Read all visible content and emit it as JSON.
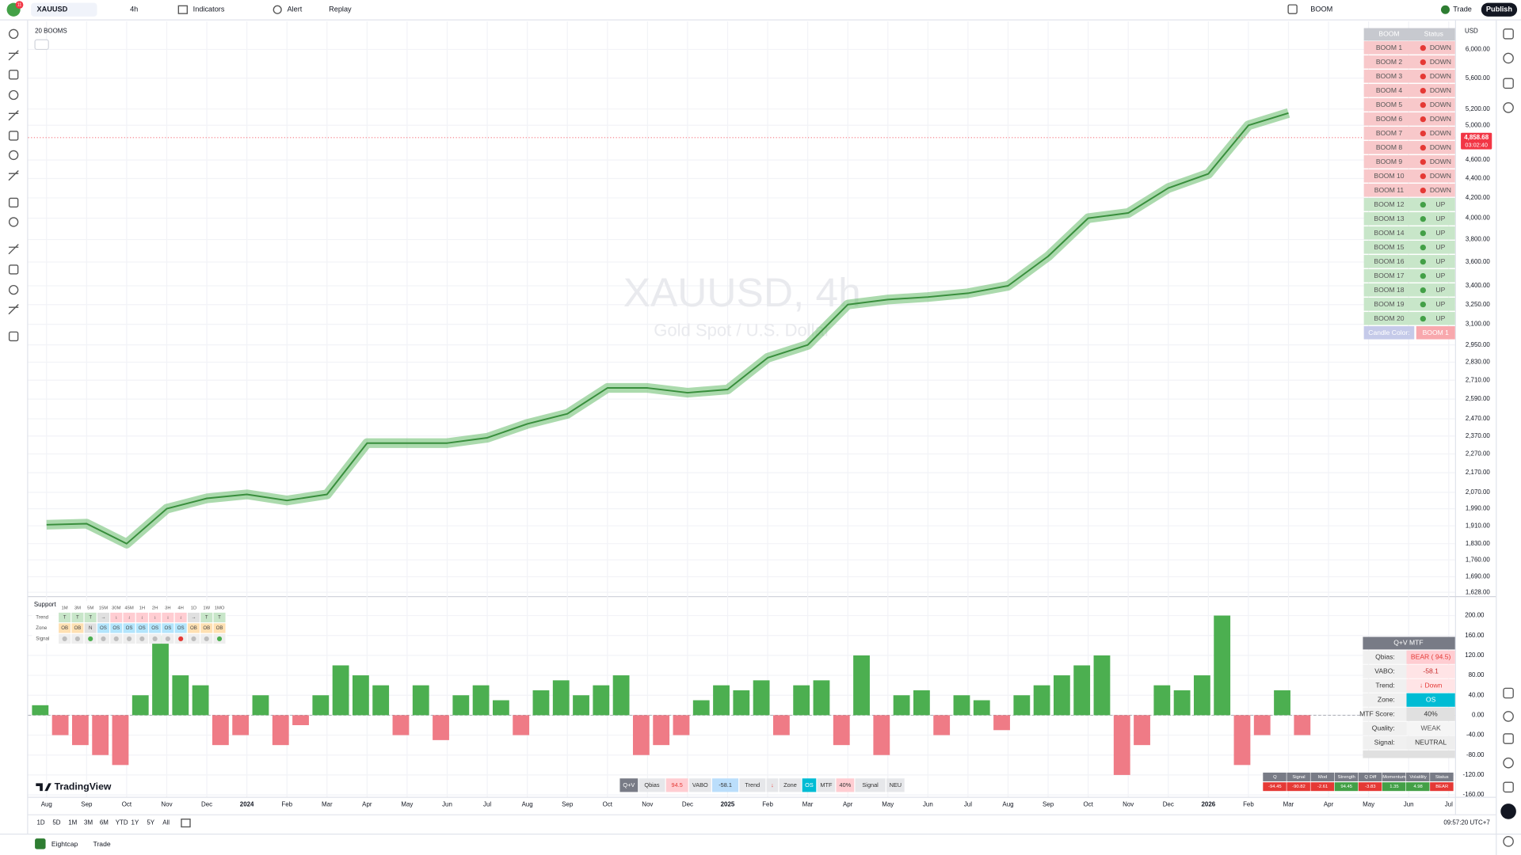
{
  "toolbar": {
    "badge": "11",
    "symbol": "XAUUSD",
    "interval": "4h",
    "indicators": "Indicators",
    "alert": "Alert",
    "replay": "Replay",
    "layout": "BOOM",
    "trade": "Trade",
    "publish": "Publish"
  },
  "indicator_legend": "20 BOOMS",
  "watermark": {
    "title": "XAUUSD, 4h",
    "subtitle": "Gold Spot / U.S. Dollar"
  },
  "price_pane": {
    "type": "line",
    "log_scale": true,
    "grid": true,
    "color": "#388e3c",
    "ribbon_color": "#66bb6a",
    "currency": "USD",
    "last_price": "4,858.68",
    "countdown": "03:02:40",
    "categories": [
      "Aug",
      "Sep",
      "Oct",
      "Nov",
      "Dec",
      "2024",
      "Feb",
      "Mar",
      "Apr",
      "May",
      "Jun",
      "Jul",
      "Aug",
      "Sep",
      "Oct",
      "Nov",
      "Dec",
      "2025",
      "Feb",
      "Mar",
      "Apr",
      "May",
      "Jun",
      "Jul",
      "Aug",
      "Sep",
      "Oct",
      "Nov",
      "Dec",
      "2026",
      "Feb",
      "Mar",
      "Apr",
      "May",
      "Jun",
      "Jul"
    ],
    "values": [
      1915,
      1920,
      1830,
      1990,
      2040,
      2060,
      2030,
      2060,
      2330,
      2330,
      2330,
      2360,
      2440,
      2500,
      2660,
      2660,
      2630,
      2650,
      2860,
      2950,
      3250,
      3290,
      3310,
      3340,
      3400,
      3650,
      4000,
      4050,
      4300,
      4450,
      5000,
      5150,
      null,
      null,
      null,
      null
    ],
    "yticks": [
      {
        "value": 6000,
        "label": "6,000.00"
      },
      {
        "value": 5600,
        "label": "5,600.00"
      },
      {
        "value": 5200,
        "label": "5,200.00"
      },
      {
        "value": 5000,
        "label": "5,000.00"
      },
      {
        "value": 4600,
        "label": "4,600.00"
      },
      {
        "value": 4400,
        "label": "4,400.00"
      },
      {
        "value": 4200,
        "label": "4,200.00"
      },
      {
        "value": 4000,
        "label": "4,000.00"
      },
      {
        "value": 3800,
        "label": "3,800.00"
      },
      {
        "value": 3600,
        "label": "3,600.00"
      },
      {
        "value": 3400,
        "label": "3,400.00"
      },
      {
        "value": 3250,
        "label": "3,250.00"
      },
      {
        "value": 3100,
        "label": "3,100.00"
      },
      {
        "value": 2950,
        "label": "2,950.00"
      },
      {
        "value": 2830,
        "label": "2,830.00"
      },
      {
        "value": 2710,
        "label": "2,710.00"
      },
      {
        "value": 2590,
        "label": "2,590.00"
      },
      {
        "value": 2470,
        "label": "2,470.00"
      },
      {
        "value": 2370,
        "label": "2,370.00"
      },
      {
        "value": 2270,
        "label": "2,270.00"
      },
      {
        "value": 2170,
        "label": "2,170.00"
      },
      {
        "value": 2070,
        "label": "2,070.00"
      },
      {
        "value": 1990,
        "label": "1,990.00"
      },
      {
        "value": 1910,
        "label": "1,910.00"
      },
      {
        "value": 1830,
        "label": "1,830.00"
      },
      {
        "value": 1760,
        "label": "1,760.00"
      },
      {
        "value": 1690,
        "label": "1,690.00"
      },
      {
        "value": 1628,
        "label": "1,628.00"
      }
    ]
  },
  "boom_table": {
    "header": [
      "BOOM",
      "Status"
    ],
    "rows": [
      {
        "name": "BOOM 1",
        "status": "DOWN",
        "color": "#f8c8ca",
        "dot": "#e53935"
      },
      {
        "name": "BOOM 2",
        "status": "DOWN",
        "color": "#f8c8ca",
        "dot": "#e53935"
      },
      {
        "name": "BOOM 3",
        "status": "DOWN",
        "color": "#f8c8ca",
        "dot": "#e53935"
      },
      {
        "name": "BOOM 4",
        "status": "DOWN",
        "color": "#f8c8ca",
        "dot": "#e53935"
      },
      {
        "name": "BOOM 5",
        "status": "DOWN",
        "color": "#f8c8ca",
        "dot": "#e53935"
      },
      {
        "name": "BOOM 6",
        "status": "DOWN",
        "color": "#f8c8ca",
        "dot": "#e53935"
      },
      {
        "name": "BOOM 7",
        "status": "DOWN",
        "color": "#f8c8ca",
        "dot": "#e53935"
      },
      {
        "name": "BOOM 8",
        "status": "DOWN",
        "color": "#f8c8ca",
        "dot": "#e53935"
      },
      {
        "name": "BOOM 9",
        "status": "DOWN",
        "color": "#f8c8ca",
        "dot": "#e53935"
      },
      {
        "name": "BOOM 10",
        "status": "DOWN",
        "color": "#f8c8ca",
        "dot": "#e53935"
      },
      {
        "name": "BOOM 11",
        "status": "DOWN",
        "color": "#f8c8ca",
        "dot": "#e53935"
      },
      {
        "name": "BOOM 12",
        "status": "UP",
        "color": "#c8e6c9",
        "dot": "#43a047"
      },
      {
        "name": "BOOM 13",
        "status": "UP",
        "color": "#c8e6c9",
        "dot": "#43a047"
      },
      {
        "name": "BOOM 14",
        "status": "UP",
        "color": "#c8e6c9",
        "dot": "#43a047"
      },
      {
        "name": "BOOM 15",
        "status": "UP",
        "color": "#c8e6c9",
        "dot": "#43a047"
      },
      {
        "name": "BOOM 16",
        "status": "UP",
        "color": "#c8e6c9",
        "dot": "#43a047"
      },
      {
        "name": "BOOM 17",
        "status": "UP",
        "color": "#c8e6c9",
        "dot": "#43a047"
      },
      {
        "name": "BOOM 18",
        "status": "UP",
        "color": "#c8e6c9",
        "dot": "#43a047"
      },
      {
        "name": "BOOM 19",
        "status": "UP",
        "color": "#c8e6c9",
        "dot": "#43a047"
      },
      {
        "name": "BOOM 20",
        "status": "UP",
        "color": "#c8e6c9",
        "dot": "#43a047"
      }
    ],
    "footer": [
      "Candle Color:",
      "BOOM 1"
    ]
  },
  "support_table": {
    "title": "Support",
    "columns": [
      "1M",
      "3M",
      "5M",
      "15M",
      "30M",
      "45M",
      "1H",
      "2H",
      "3H",
      "4H",
      "1D",
      "1W",
      "1MO"
    ],
    "rows": [
      {
        "label": "Trend",
        "cells": [
          "T",
          "T",
          "T",
          "→",
          "↓",
          "↓",
          "↓",
          "↓",
          "↓",
          "↓",
          "→",
          "T",
          "T"
        ],
        "colors": [
          "#c8e6c9",
          "#c8e6c9",
          "#c8e6c9",
          "#e0e0e0",
          "#ffcdd2",
          "#ffcdd2",
          "#ffcdd2",
          "#ffcdd2",
          "#ffcdd2",
          "#ffcdd2",
          "#e0e0e0",
          "#c8e6c9",
          "#c8e6c9"
        ]
      },
      {
        "label": "Zone",
        "cells": [
          "OB",
          "OB",
          "N",
          "OS",
          "OS",
          "OS",
          "OS",
          "OS",
          "OS",
          "OS",
          "OB",
          "OB",
          "OB"
        ],
        "colors": [
          "#ffe0b2",
          "#ffe0b2",
          "#e0e0e0",
          "#b3e5fc",
          "#b3e5fc",
          "#b3e5fc",
          "#b3e5fc",
          "#b3e5fc",
          "#b3e5fc",
          "#b3e5fc",
          "#ffe0b2",
          "#ffe0b2",
          "#ffe0b2"
        ]
      },
      {
        "label": "Signal",
        "dots": [
          "#bdbdbd",
          "#bdbdbd",
          "#4caf50",
          "#bdbdbd",
          "#bdbdbd",
          "#bdbdbd",
          "#bdbdbd",
          "#bdbdbd",
          "#bdbdbd",
          "#e53935",
          "#bdbdbd",
          "#bdbdbd",
          "#4caf50"
        ]
      }
    ]
  },
  "oscillator_pane": {
    "type": "bar",
    "up_color": "#4caf50",
    "down_color": "#ef7b86",
    "values": [
      20,
      -40,
      -60,
      -80,
      -100,
      40,
      160,
      80,
      60,
      -60,
      -40,
      40,
      -60,
      -20,
      40,
      100,
      80,
      60,
      -40,
      60,
      -50,
      40,
      60,
      30,
      -40,
      50,
      70,
      40,
      60,
      80,
      -80,
      -60,
      -40,
      30,
      60,
      50,
      70,
      -40,
      60,
      70,
      -60,
      120,
      -80,
      40,
      50,
      -40,
      40,
      30,
      -30,
      40,
      60,
      80,
      100,
      120,
      -120,
      -60,
      60,
      50,
      80,
      200,
      -100,
      -40,
      50,
      -40
    ],
    "yticks": [
      {
        "value": 200,
        "label": "200.00"
      },
      {
        "value": 160,
        "label": "160.00"
      },
      {
        "value": 120,
        "label": "120.00"
      },
      {
        "value": 80,
        "label": "80.00"
      },
      {
        "value": 40,
        "label": "40.00"
      },
      {
        "value": 0,
        "label": "0.00"
      },
      {
        "value": -40,
        "label": "-40.00"
      },
      {
        "value": -80,
        "label": "-80.00"
      },
      {
        "value": -120,
        "label": "-120.00"
      },
      {
        "value": -160,
        "label": "-160.00"
      }
    ]
  },
  "mtf_table": {
    "title": "Q+V MTF",
    "rows": [
      {
        "label": "Qbias:",
        "value": "BEAR ( 94.5)",
        "bg": "#ffcdd2",
        "fg": "#e53935"
      },
      {
        "label": "VABO:",
        "value": "-58.1",
        "bg": "#ffe4e6",
        "fg": "#c62828"
      },
      {
        "label": "Trend:",
        "value": "↓ Down",
        "bg": "#ffe4e6",
        "fg": "#e53935"
      },
      {
        "label": "Zone:",
        "value": "OS",
        "bg": "#00bcd4",
        "fg": "#ffffff"
      },
      {
        "label": "MTF Score:",
        "value": "40%",
        "bg": "#e0e0e0",
        "fg": "#333333"
      },
      {
        "label": "Quality:",
        "value": "WEAK",
        "bg": "#f5f5f5",
        "fg": "#555555"
      },
      {
        "label": "Signal:",
        "value": "NEUTRAL",
        "bg": "#eeeeee",
        "fg": "#333333"
      }
    ]
  },
  "status_bar": [
    {
      "text": "Q+V",
      "bg": "#787b86",
      "fg": "#ffffff"
    },
    {
      "text": "Qbias"
    },
    {
      "text": "94.5",
      "bg": "#ffcdd2",
      "fg": "#e53935"
    },
    {
      "text": "VABO"
    },
    {
      "text": "-58.1",
      "bg": "#bbdefb"
    },
    {
      "text": "Trend"
    },
    {
      "text": "↓",
      "fg": "#e53935"
    },
    {
      "text": "Zone"
    },
    {
      "text": "OS",
      "bg": "#00bcd4",
      "fg": "#ffffff"
    },
    {
      "text": "MTF"
    },
    {
      "text": "40%",
      "bg": "#ffcdd2"
    },
    {
      "text": "Signal"
    },
    {
      "text": "NEU"
    }
  ],
  "mini_table": {
    "header": [
      "Q",
      "Signal",
      "Mod",
      "Strength",
      "Q Diff",
      "Momentum",
      "Volatility",
      "Status"
    ],
    "row": [
      {
        "text": "-94.45",
        "bg": "#e53935"
      },
      {
        "text": "-90.82",
        "bg": "#e53935"
      },
      {
        "text": "-2.61",
        "bg": "#e53935"
      },
      {
        "text": "94.45",
        "bg": "#43a047"
      },
      {
        "text": "-3.83",
        "bg": "#e53935"
      },
      {
        "text": "1.35",
        "bg": "#43a047"
      },
      {
        "text": "4.98",
        "bg": "#43a047"
      },
      {
        "text": "BEAR",
        "bg": "#e53935"
      }
    ]
  },
  "branding": "TradingView",
  "range_bar": {
    "ranges": [
      "1D",
      "5D",
      "1M",
      "3M",
      "6M",
      "YTD",
      "1Y",
      "5Y",
      "All"
    ],
    "clock": "09:57:20 UTC+7"
  },
  "footer": {
    "broker": "Eightcap",
    "trade": "Trade"
  }
}
